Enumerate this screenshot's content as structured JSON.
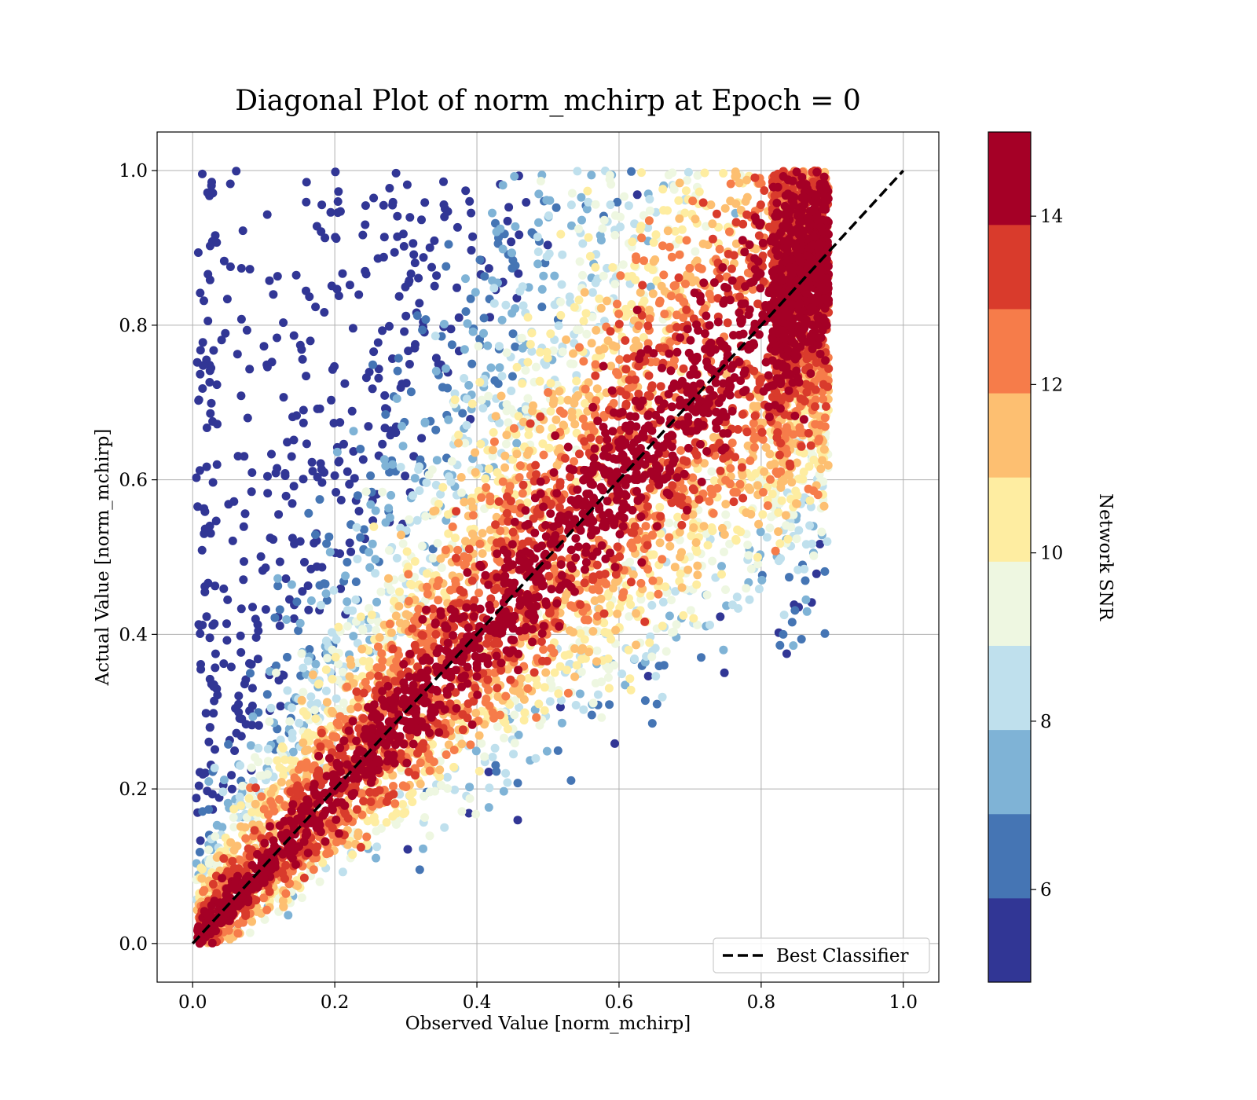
{
  "chart_data": {
    "type": "scatter",
    "title": "Diagonal Plot of norm_mchirp at Epoch = 0",
    "xlabel": "Observed Value [norm_mchirp]",
    "ylabel": "Actual Value [norm_mchirp]",
    "xlim": [
      -0.05,
      1.05
    ],
    "ylim": [
      -0.05,
      1.05
    ],
    "x_ticks": [
      "0.0",
      "0.2",
      "0.4",
      "0.6",
      "0.8",
      "1.0"
    ],
    "y_ticks": [
      "0.0",
      "0.2",
      "0.4",
      "0.6",
      "0.8",
      "1.0"
    ],
    "x_tick_values": [
      0,
      0.2,
      0.4,
      0.6,
      0.8,
      1.0
    ],
    "y_tick_values": [
      0,
      0.2,
      0.4,
      0.6,
      0.8,
      1.0
    ],
    "grid": true,
    "reference_line": {
      "name": "Best Classifier",
      "x": [
        0,
        1
      ],
      "y": [
        0,
        1
      ],
      "style": "dashed",
      "color": "#000000"
    },
    "legend": {
      "position": "lower-right",
      "entries": [
        "Best Classifier"
      ]
    },
    "colorbar": {
      "label": "Network SNR",
      "range": [
        4.9,
        15.0
      ],
      "ticks": [
        "6",
        "8",
        "10",
        "12",
        "14"
      ],
      "tick_values": [
        6,
        8,
        10,
        12,
        14
      ],
      "bands": [
        {
          "from": 4.9,
          "to": 5.9,
          "color": "#313695"
        },
        {
          "from": 5.9,
          "to": 6.9,
          "color": "#4575b4"
        },
        {
          "from": 6.9,
          "to": 7.9,
          "color": "#7fb3d6"
        },
        {
          "from": 7.9,
          "to": 8.9,
          "color": "#bfe0ed"
        },
        {
          "from": 8.9,
          "to": 9.9,
          "color": "#eef7e1"
        },
        {
          "from": 9.9,
          "to": 10.9,
          "color": "#feeda1"
        },
        {
          "from": 10.9,
          "to": 11.9,
          "color": "#fdbf71"
        },
        {
          "from": 11.9,
          "to": 12.9,
          "color": "#f67c4a"
        },
        {
          "from": 12.9,
          "to": 13.9,
          "color": "#d93b2c"
        },
        {
          "from": 13.9,
          "to": 15.0,
          "color": "#a50026"
        }
      ]
    },
    "point_cloud": {
      "x_range": [
        0.0,
        0.9
      ],
      "y_range": [
        0.0,
        1.0
      ],
      "description_of_color": "points near the diagonal have high Network SNR (dark red); points far from the diagonal have low SNR (blue)"
    }
  }
}
